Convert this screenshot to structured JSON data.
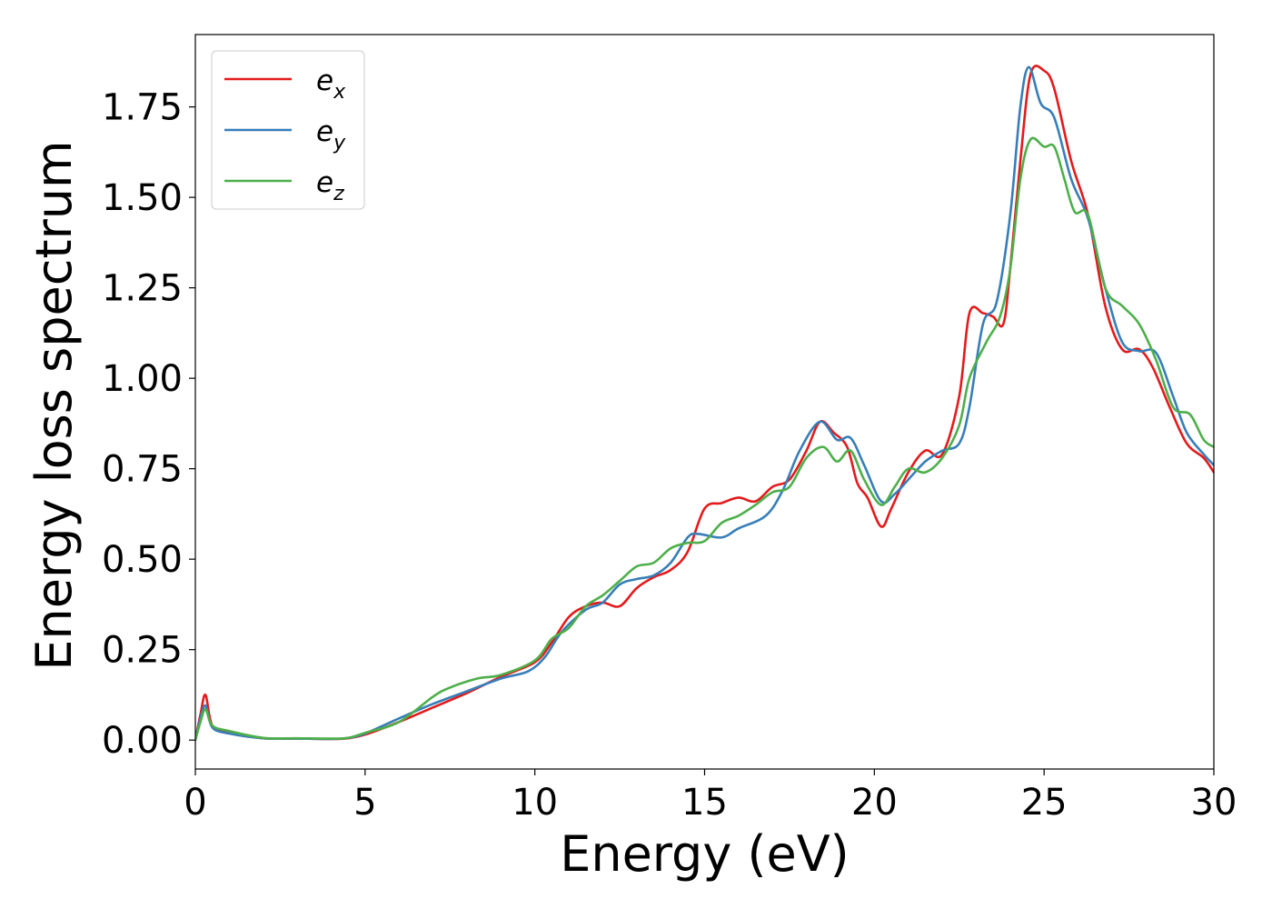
{
  "chart_data": {
    "type": "line",
    "xlabel": "Energy (eV)",
    "ylabel": "Energy loss spectrum",
    "xlim": [
      0,
      30
    ],
    "ylim": [
      -0.08,
      1.95
    ],
    "xticks": [
      "0",
      "5",
      "10",
      "15",
      "20",
      "25",
      "30"
    ],
    "yticks": [
      "0.00",
      "0.25",
      "0.50",
      "0.75",
      "1.00",
      "1.25",
      "1.50",
      "1.75"
    ],
    "grid": false,
    "legend_position": "top-left",
    "series": [
      {
        "name": "e_x",
        "legend_base": "e",
        "legend_sub": "x",
        "color": "#e41a1c",
        "points": [
          [
            0,
            0
          ],
          [
            0.15,
            0.07
          ],
          [
            0.3,
            0.125
          ],
          [
            0.5,
            0.04
          ],
          [
            1,
            0.02
          ],
          [
            2,
            0.005
          ],
          [
            3,
            0.004
          ],
          [
            4,
            0.003
          ],
          [
            4.5,
            0.005
          ],
          [
            5,
            0.015
          ],
          [
            6,
            0.05
          ],
          [
            7,
            0.09
          ],
          [
            8,
            0.13
          ],
          [
            9,
            0.175
          ],
          [
            10,
            0.215
          ],
          [
            10.5,
            0.27
          ],
          [
            11,
            0.34
          ],
          [
            11.5,
            0.37
          ],
          [
            12,
            0.38
          ],
          [
            12.5,
            0.37
          ],
          [
            13,
            0.42
          ],
          [
            13.5,
            0.45
          ],
          [
            14,
            0.47
          ],
          [
            14.5,
            0.52
          ],
          [
            15,
            0.64
          ],
          [
            15.5,
            0.655
          ],
          [
            16,
            0.67
          ],
          [
            16.5,
            0.66
          ],
          [
            17,
            0.7
          ],
          [
            17.5,
            0.72
          ],
          [
            18,
            0.8
          ],
          [
            18.4,
            0.88
          ],
          [
            18.8,
            0.85
          ],
          [
            19.2,
            0.81
          ],
          [
            19.5,
            0.71
          ],
          [
            19.8,
            0.67
          ],
          [
            20.2,
            0.59
          ],
          [
            20.5,
            0.64
          ],
          [
            21,
            0.74
          ],
          [
            21.5,
            0.8
          ],
          [
            22,
            0.79
          ],
          [
            22.5,
            0.95
          ],
          [
            22.8,
            1.18
          ],
          [
            23.2,
            1.18
          ],
          [
            23.5,
            1.17
          ],
          [
            23.8,
            1.15
          ],
          [
            24,
            1.3
          ],
          [
            24.3,
            1.6
          ],
          [
            24.6,
            1.84
          ],
          [
            25,
            1.85
          ],
          [
            25.3,
            1.8
          ],
          [
            25.8,
            1.6
          ],
          [
            26.3,
            1.45
          ],
          [
            26.8,
            1.2
          ],
          [
            27.3,
            1.08
          ],
          [
            27.8,
            1.08
          ],
          [
            28.2,
            1.03
          ],
          [
            28.7,
            0.92
          ],
          [
            29.2,
            0.82
          ],
          [
            29.7,
            0.78
          ],
          [
            30,
            0.74
          ]
        ]
      },
      {
        "name": "e_y",
        "legend_base": "e",
        "legend_sub": "y",
        "color": "#377eb8",
        "points": [
          [
            0,
            0
          ],
          [
            0.15,
            0.06
          ],
          [
            0.3,
            0.095
          ],
          [
            0.5,
            0.035
          ],
          [
            1,
            0.018
          ],
          [
            2,
            0.005
          ],
          [
            3,
            0.004
          ],
          [
            4,
            0.003
          ],
          [
            4.5,
            0.006
          ],
          [
            5,
            0.018
          ],
          [
            6,
            0.06
          ],
          [
            7,
            0.1
          ],
          [
            8,
            0.135
          ],
          [
            9,
            0.17
          ],
          [
            9.8,
            0.19
          ],
          [
            10.3,
            0.23
          ],
          [
            10.8,
            0.3
          ],
          [
            11.5,
            0.36
          ],
          [
            12,
            0.38
          ],
          [
            12.5,
            0.43
          ],
          [
            13,
            0.445
          ],
          [
            13.5,
            0.455
          ],
          [
            14,
            0.49
          ],
          [
            14.5,
            0.56
          ],
          [
            14.8,
            0.57
          ],
          [
            15.5,
            0.56
          ],
          [
            16,
            0.585
          ],
          [
            16.8,
            0.62
          ],
          [
            17.3,
            0.69
          ],
          [
            17.8,
            0.8
          ],
          [
            18.4,
            0.88
          ],
          [
            18.9,
            0.83
          ],
          [
            19.3,
            0.835
          ],
          [
            19.7,
            0.76
          ],
          [
            20.2,
            0.66
          ],
          [
            20.6,
            0.68
          ],
          [
            21,
            0.72
          ],
          [
            21.5,
            0.77
          ],
          [
            22,
            0.8
          ],
          [
            22.5,
            0.82
          ],
          [
            22.8,
            0.92
          ],
          [
            23.2,
            1.15
          ],
          [
            23.6,
            1.21
          ],
          [
            24,
            1.45
          ],
          [
            24.3,
            1.75
          ],
          [
            24.55,
            1.86
          ],
          [
            24.9,
            1.76
          ],
          [
            25.3,
            1.72
          ],
          [
            25.8,
            1.55
          ],
          [
            26.3,
            1.44
          ],
          [
            26.8,
            1.25
          ],
          [
            27.3,
            1.1
          ],
          [
            27.8,
            1.075
          ],
          [
            28.3,
            1.07
          ],
          [
            28.8,
            0.95
          ],
          [
            29.2,
            0.85
          ],
          [
            29.7,
            0.79
          ],
          [
            30,
            0.76
          ]
        ]
      },
      {
        "name": "e_z",
        "legend_base": "e",
        "legend_sub": "z",
        "color": "#4daf4a",
        "points": [
          [
            0,
            0
          ],
          [
            0.15,
            0.05
          ],
          [
            0.3,
            0.085
          ],
          [
            0.5,
            0.04
          ],
          [
            1,
            0.025
          ],
          [
            2,
            0.006
          ],
          [
            3,
            0.005
          ],
          [
            4,
            0.004
          ],
          [
            4.5,
            0.006
          ],
          [
            5,
            0.02
          ],
          [
            6,
            0.05
          ],
          [
            7,
            0.12
          ],
          [
            7.5,
            0.145
          ],
          [
            8.3,
            0.17
          ],
          [
            9,
            0.18
          ],
          [
            10,
            0.22
          ],
          [
            10.5,
            0.28
          ],
          [
            11,
            0.31
          ],
          [
            11.5,
            0.37
          ],
          [
            12,
            0.4
          ],
          [
            12.5,
            0.44
          ],
          [
            13,
            0.48
          ],
          [
            13.5,
            0.49
          ],
          [
            14,
            0.53
          ],
          [
            14.5,
            0.545
          ],
          [
            15,
            0.55
          ],
          [
            15.5,
            0.6
          ],
          [
            16,
            0.62
          ],
          [
            16.5,
            0.65
          ],
          [
            17,
            0.685
          ],
          [
            17.5,
            0.7
          ],
          [
            18,
            0.78
          ],
          [
            18.5,
            0.81
          ],
          [
            18.9,
            0.77
          ],
          [
            19.3,
            0.8
          ],
          [
            19.7,
            0.72
          ],
          [
            20.2,
            0.65
          ],
          [
            20.6,
            0.7
          ],
          [
            21,
            0.75
          ],
          [
            21.5,
            0.74
          ],
          [
            22,
            0.78
          ],
          [
            22.5,
            0.87
          ],
          [
            22.8,
            1.0
          ],
          [
            23.3,
            1.1
          ],
          [
            23.7,
            1.17
          ],
          [
            24,
            1.3
          ],
          [
            24.3,
            1.55
          ],
          [
            24.6,
            1.66
          ],
          [
            25,
            1.64
          ],
          [
            25.3,
            1.64
          ],
          [
            25.6,
            1.55
          ],
          [
            25.9,
            1.46
          ],
          [
            26.3,
            1.45
          ],
          [
            26.8,
            1.25
          ],
          [
            27.3,
            1.2
          ],
          [
            27.8,
            1.15
          ],
          [
            28.3,
            1.05
          ],
          [
            28.8,
            0.92
          ],
          [
            29.3,
            0.9
          ],
          [
            29.7,
            0.83
          ],
          [
            30,
            0.81
          ]
        ]
      }
    ]
  }
}
